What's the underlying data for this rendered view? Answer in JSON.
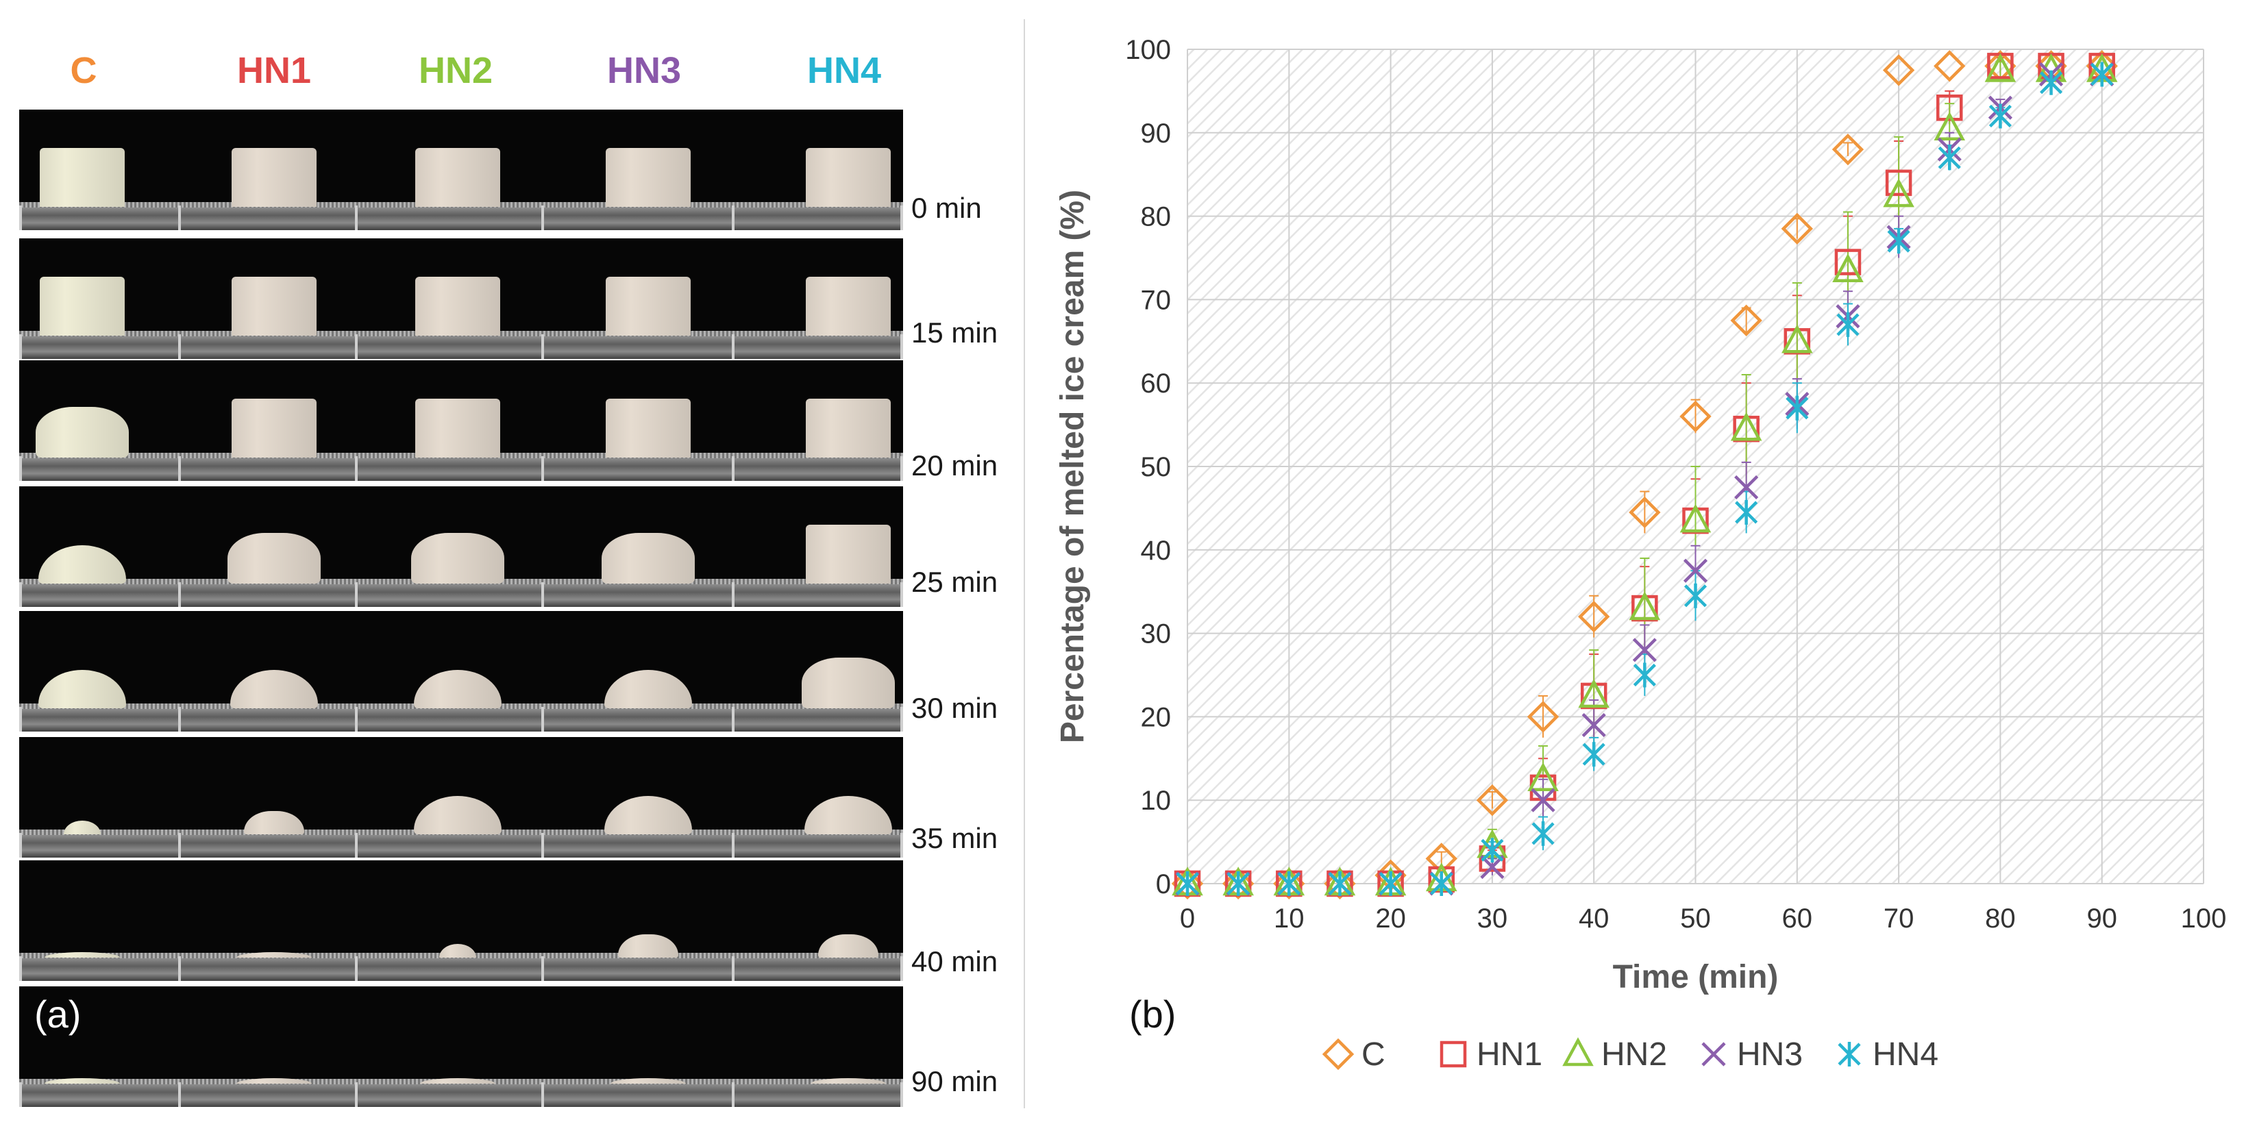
{
  "panel_a": {
    "label": "(a)",
    "columns": [
      {
        "name": "C",
        "color": "#f28c38"
      },
      {
        "name": "HN1",
        "color": "#e04848"
      },
      {
        "name": "HN2",
        "color": "#8cc63e"
      },
      {
        "name": "HN3",
        "color": "#8a58aa"
      },
      {
        "name": "HN4",
        "color": "#26b4d2"
      }
    ],
    "time_labels": [
      "0 min",
      "15 min",
      "20 min",
      "25 min",
      "30 min",
      "35 min",
      "40 min",
      "90 min"
    ],
    "cream_colors": {
      "C": "#efedd6",
      "HN": "#e6dcd0"
    }
  },
  "panel_b": {
    "label": "(b)"
  },
  "chart_data": {
    "type": "scatter",
    "xlabel": "Time (min)",
    "ylabel": "Percentage of melted ice cream (%)",
    "xlim": [
      0,
      100
    ],
    "ylim": [
      0,
      100
    ],
    "x_ticks": [
      "0",
      "10",
      "20",
      "30",
      "40",
      "50",
      "60",
      "70",
      "80",
      "90",
      "100"
    ],
    "y_ticks": [
      "0",
      "10",
      "20",
      "30",
      "40",
      "50",
      "60",
      "70",
      "80",
      "90",
      "100"
    ],
    "grid": true,
    "legend_position": "bottom",
    "x": [
      0,
      5,
      10,
      15,
      20,
      25,
      30,
      35,
      40,
      45,
      50,
      55,
      60,
      65,
      70,
      75,
      80,
      85,
      90
    ],
    "series": [
      {
        "name": "C",
        "marker": "diamond",
        "color": "#f0963c",
        "values": [
          0,
          0,
          0,
          0,
          1,
          3,
          10,
          20,
          32,
          44.5,
          56,
          67.5,
          78.5,
          88,
          97.5,
          98,
          98,
          98,
          98
        ],
        "errors": [
          0,
          0,
          0,
          0,
          0.5,
          0.8,
          1,
          2.5,
          2.5,
          2.5,
          2,
          1.5,
          1.2,
          0.8,
          0.5,
          0.5,
          0.5,
          0.5,
          0.5
        ]
      },
      {
        "name": "HN1",
        "marker": "square",
        "color": "#e24a4a",
        "values": [
          0,
          0,
          0,
          0,
          0,
          0.5,
          3,
          11.5,
          22.5,
          33,
          43.5,
          54.5,
          65,
          74.5,
          84,
          93,
          98,
          98,
          98
        ],
        "errors": [
          0,
          0,
          0,
          0,
          0,
          0.5,
          1,
          3.5,
          5,
          5,
          5,
          5.5,
          5.5,
          5.5,
          5,
          2,
          1,
          0.5,
          0.5
        ]
      },
      {
        "name": "HN2",
        "marker": "triangle",
        "color": "#8dc63f",
        "values": [
          0,
          0,
          0,
          0,
          0,
          0.5,
          4.5,
          12.5,
          22.5,
          33,
          43.5,
          54.5,
          65,
          73.5,
          82.5,
          90.5,
          97.5,
          97.5,
          97.5
        ],
        "errors": [
          0,
          0,
          0,
          0,
          0,
          0.5,
          2,
          4,
          5.5,
          6,
          6.5,
          6.5,
          7,
          7,
          7,
          3,
          1,
          0.5,
          0.5
        ]
      },
      {
        "name": "HN3",
        "marker": "x",
        "color": "#8b5fac",
        "values": [
          0,
          0,
          0,
          0,
          0,
          0,
          2,
          10,
          19,
          28,
          37.5,
          47.5,
          57.5,
          68,
          77.5,
          88,
          93,
          97,
          97
        ],
        "errors": [
          0,
          0,
          0,
          0,
          0,
          0,
          1,
          2.5,
          3,
          3,
          3,
          3,
          3,
          3,
          2.5,
          2,
          1,
          0.5,
          0.5
        ]
      },
      {
        "name": "HN4",
        "marker": "asterisk",
        "color": "#28b4d0",
        "values": [
          0,
          0,
          0,
          0,
          0,
          0,
          4,
          6,
          15.5,
          25,
          34.5,
          44.5,
          57,
          67,
          77,
          87,
          92,
          96,
          97
        ],
        "errors": [
          0,
          0,
          0,
          0,
          0,
          0,
          1,
          2,
          2,
          2.5,
          3,
          2.5,
          3,
          2.5,
          1.5,
          1.5,
          1,
          0.5,
          0.5
        ]
      }
    ]
  }
}
